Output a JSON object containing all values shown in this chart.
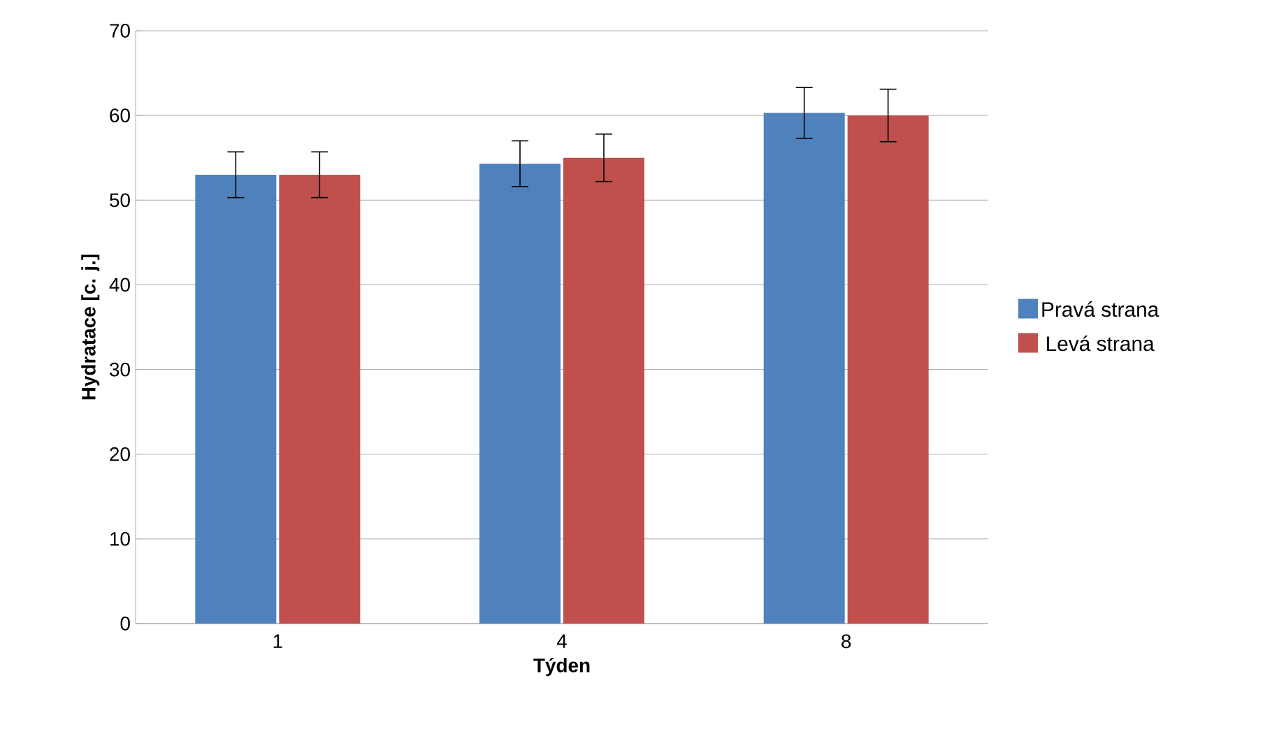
{
  "chart_data": {
    "type": "bar",
    "xlabel": "Týden",
    "ylabel": "Hydratace [c. j.]",
    "categories": [
      "1",
      "4",
      "8"
    ],
    "series": [
      {
        "name": "Pravá strana",
        "color": "#4f81bd",
        "values": [
          53.0,
          54.3,
          60.3
        ],
        "errors": [
          2.7,
          2.7,
          3.0
        ]
      },
      {
        "name": "Levá strana",
        "color": "#c0504d",
        "values": [
          53.0,
          55.0,
          60.0
        ],
        "errors": [
          2.7,
          2.8,
          3.1
        ]
      }
    ],
    "ylim": [
      0,
      70
    ],
    "yticks": [
      0,
      10,
      20,
      30,
      40,
      50,
      60,
      70
    ],
    "grid": "y",
    "legend": "right"
  }
}
